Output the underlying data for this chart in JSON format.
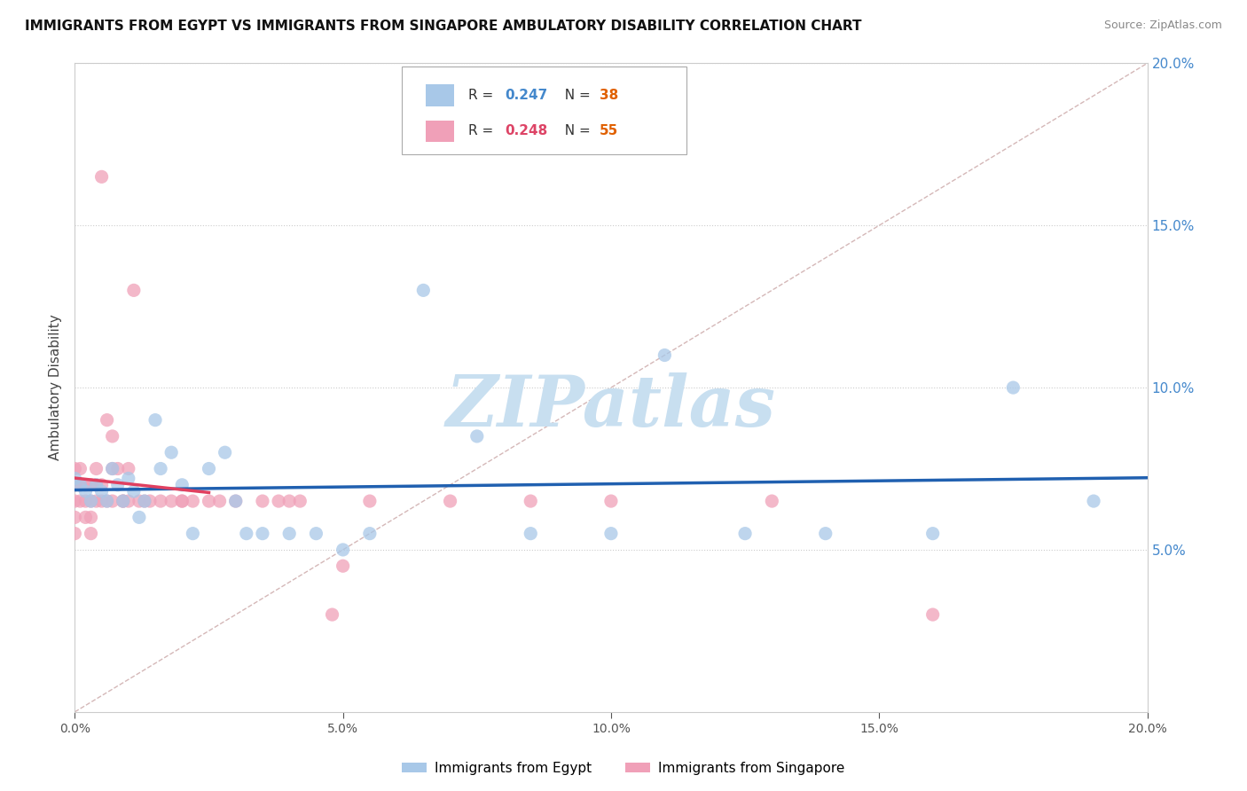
{
  "title": "IMMIGRANTS FROM EGYPT VS IMMIGRANTS FROM SINGAPORE AMBULATORY DISABILITY CORRELATION CHART",
  "source": "Source: ZipAtlas.com",
  "ylabel": "Ambulatory Disability",
  "xlim": [
    0.0,
    0.2
  ],
  "ylim": [
    0.0,
    0.2
  ],
  "right_yticks": [
    0.05,
    0.1,
    0.15,
    0.2
  ],
  "xticks": [
    0.0,
    0.05,
    0.1,
    0.15,
    0.2
  ],
  "egypt_R": 0.247,
  "egypt_N": 38,
  "singapore_R": 0.248,
  "singapore_N": 55,
  "egypt_color": "#a8c8e8",
  "singapore_color": "#f0a0b8",
  "egypt_line_color": "#2060b0",
  "singapore_line_color": "#e04060",
  "diagonal_color": "#d0b0b0",
  "watermark_color": "#c8dff0",
  "egypt_x": [
    0.0,
    0.001,
    0.002,
    0.003,
    0.004,
    0.005,
    0.006,
    0.007,
    0.008,
    0.009,
    0.01,
    0.011,
    0.012,
    0.013,
    0.015,
    0.016,
    0.018,
    0.02,
    0.022,
    0.025,
    0.028,
    0.03,
    0.032,
    0.035,
    0.04,
    0.045,
    0.05,
    0.055,
    0.065,
    0.075,
    0.085,
    0.1,
    0.11,
    0.125,
    0.14,
    0.16,
    0.175,
    0.19
  ],
  "egypt_y": [
    0.072,
    0.07,
    0.068,
    0.065,
    0.07,
    0.068,
    0.065,
    0.075,
    0.07,
    0.065,
    0.072,
    0.068,
    0.06,
    0.065,
    0.09,
    0.075,
    0.08,
    0.07,
    0.055,
    0.075,
    0.08,
    0.065,
    0.055,
    0.055,
    0.055,
    0.055,
    0.05,
    0.055,
    0.13,
    0.085,
    0.055,
    0.055,
    0.11,
    0.055,
    0.055,
    0.055,
    0.1,
    0.065
  ],
  "singapore_x": [
    0.0,
    0.0,
    0.0,
    0.0,
    0.0,
    0.001,
    0.001,
    0.001,
    0.002,
    0.002,
    0.002,
    0.003,
    0.003,
    0.003,
    0.003,
    0.004,
    0.004,
    0.004,
    0.005,
    0.005,
    0.005,
    0.006,
    0.006,
    0.007,
    0.007,
    0.007,
    0.008,
    0.009,
    0.009,
    0.01,
    0.01,
    0.011,
    0.012,
    0.013,
    0.014,
    0.016,
    0.018,
    0.02,
    0.02,
    0.022,
    0.025,
    0.027,
    0.03,
    0.035,
    0.038,
    0.04,
    0.042,
    0.048,
    0.05,
    0.055,
    0.07,
    0.085,
    0.1,
    0.13,
    0.16
  ],
  "singapore_y": [
    0.065,
    0.07,
    0.055,
    0.06,
    0.075,
    0.065,
    0.07,
    0.075,
    0.065,
    0.06,
    0.07,
    0.065,
    0.07,
    0.06,
    0.055,
    0.065,
    0.07,
    0.075,
    0.065,
    0.07,
    0.165,
    0.09,
    0.065,
    0.065,
    0.075,
    0.085,
    0.075,
    0.065,
    0.065,
    0.065,
    0.075,
    0.13,
    0.065,
    0.065,
    0.065,
    0.065,
    0.065,
    0.065,
    0.065,
    0.065,
    0.065,
    0.065,
    0.065,
    0.065,
    0.065,
    0.065,
    0.065,
    0.03,
    0.045,
    0.065,
    0.065,
    0.065,
    0.065,
    0.065,
    0.03
  ]
}
